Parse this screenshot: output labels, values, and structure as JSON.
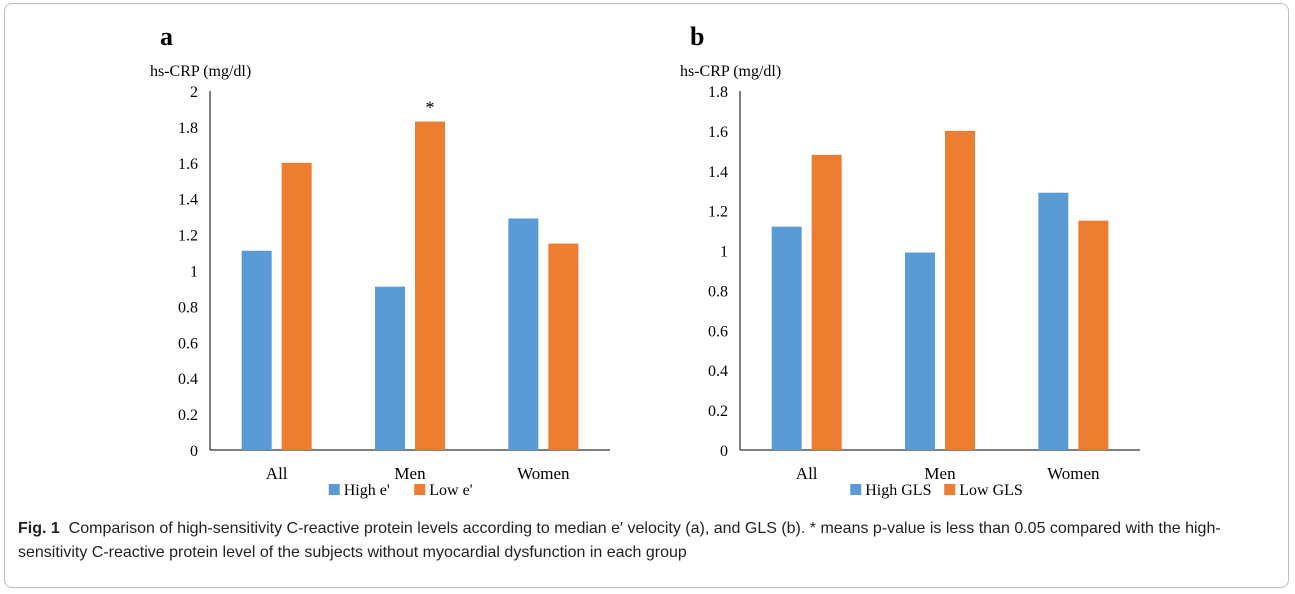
{
  "chart_data": [
    {
      "type": "bar",
      "panel_label": "a",
      "ylabel": "hs-CRP (mg/dl)",
      "categories": [
        "All",
        "Men",
        "Women"
      ],
      "series": [
        {
          "name": "High e'",
          "values": [
            1.11,
            0.91,
            1.29
          ],
          "color": "#5b9bd5"
        },
        {
          "name": "Low e'",
          "values": [
            1.6,
            1.83,
            1.15
          ],
          "color": "#ed7d31"
        }
      ],
      "ylim": [
        0,
        2
      ],
      "yticks": [
        "0",
        "0.2",
        "0.4",
        "0.6",
        "0.8",
        "1",
        "1.2",
        "1.4",
        "1.6",
        "1.8",
        "2"
      ],
      "annotations": [
        {
          "text": "*",
          "category": "Men",
          "series": "Low e'"
        }
      ],
      "legend_position": "bottom",
      "grid": false
    },
    {
      "type": "bar",
      "panel_label": "b",
      "ylabel": "hs-CRP (mg/dl)",
      "categories": [
        "All",
        "Men",
        "Women"
      ],
      "series": [
        {
          "name": "High GLS",
          "values": [
            1.12,
            0.99,
            1.29
          ],
          "color": "#5b9bd5"
        },
        {
          "name": "Low GLS",
          "values": [
            1.48,
            1.6,
            1.15
          ],
          "color": "#ed7d31"
        }
      ],
      "ylim": [
        0,
        1.8
      ],
      "yticks": [
        "0",
        "0.2",
        "0.4",
        "0.6",
        "0.8",
        "1",
        "1.2",
        "1.4",
        "1.6",
        "1.8"
      ],
      "annotations": [],
      "legend_position": "bottom",
      "grid": false
    }
  ],
  "caption": {
    "label": "Fig. 1",
    "text": "Comparison of high-sensitivity C-reactive protein levels according to median e′ velocity (a), and GLS (b). * means p-value is less than 0.05 compared with the high-sensitivity C-reactive protein level of the subjects without myocardial dysfunction in each group"
  }
}
